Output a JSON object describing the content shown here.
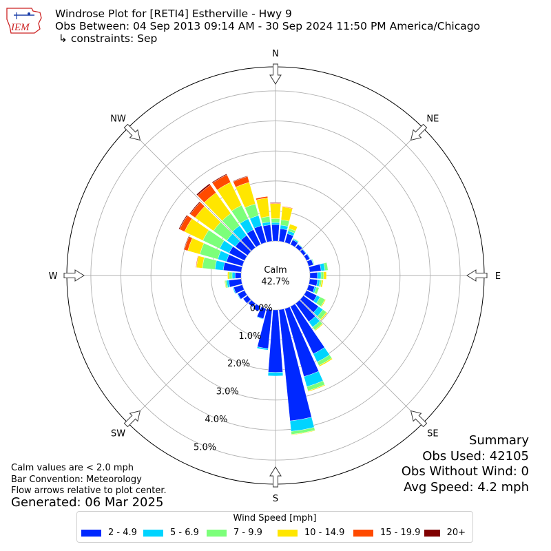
{
  "header": {
    "line1": "Windrose Plot for [RETI4] Estherville - Hwy 9",
    "line2": "Obs Between: 04 Sep 2013 09:14 AM - 30 Sep 2024 11:50 PM America/Chicago",
    "line3": " ↳ constraints: Sep"
  },
  "logo": {
    "text": "IEM",
    "color": "#cc2222"
  },
  "notes": {
    "calm": "Calm values are < 2.0 mph",
    "convention": "Bar Convention: Meteorology",
    "flow": "Flow arrows relative to plot center.",
    "generated": "Generated: 06 Mar 2025"
  },
  "summary": {
    "title": "Summary",
    "obs_used": "Obs Used: 42105",
    "obs_without_wind": "Obs Without Wind: 0",
    "avg_speed": "Avg Speed: 4.2 mph"
  },
  "center": {
    "label": "Calm",
    "value": "42.7%"
  },
  "legend": {
    "title": "Wind Speed [mph]",
    "items": [
      {
        "label": "2 - 4.9",
        "color": "#0028ff"
      },
      {
        "label": "5 - 6.9",
        "color": "#00d4ff"
      },
      {
        "label": "7 - 9.9",
        "color": "#7cff7a"
      },
      {
        "label": "10 - 14.9",
        "color": "#ffe600"
      },
      {
        "label": "15 - 19.9",
        "color": "#ff4a00"
      },
      {
        "label": "20+",
        "color": "#800000"
      }
    ]
  },
  "chart_data": {
    "type": "windrose",
    "direction_labels": [
      "N",
      "NE",
      "E",
      "SE",
      "S",
      "SW",
      "W",
      "NW"
    ],
    "rings": [
      "0.0%",
      "1.0%",
      "2.0%",
      "3.0%",
      "4.0%",
      "5.0%"
    ],
    "rmax": 5.8,
    "speed_bins": [
      "2 - 4.9",
      "5 - 6.9",
      "7 - 9.9",
      "10 - 14.9",
      "15 - 19.9",
      "20+"
    ],
    "grid": true,
    "bars": [
      {
        "dir": 0,
        "v": [
          0.55,
          0.07,
          0.13,
          0.5,
          0.02,
          0.02
        ]
      },
      {
        "dir": 10,
        "v": [
          0.42,
          0.12,
          0.18,
          0.43,
          0.02,
          0.0
        ]
      },
      {
        "dir": 20,
        "v": [
          0.3,
          0.1,
          0.08,
          0.15,
          0.0,
          0.0
        ]
      },
      {
        "dir": 30,
        "v": [
          0.17,
          0.04,
          0.02,
          0.01,
          0.0,
          0.0
        ]
      },
      {
        "dir": 40,
        "v": [
          0.13,
          0.02,
          0.01,
          0.0,
          0.0,
          0.0
        ]
      },
      {
        "dir": 50,
        "v": [
          0.1,
          0.02,
          0.0,
          0.0,
          0.0,
          0.0
        ]
      },
      {
        "dir": 60,
        "v": [
          0.12,
          0.02,
          0.0,
          0.0,
          0.0,
          0.0
        ]
      },
      {
        "dir": 70,
        "v": [
          0.16,
          0.02,
          0.02,
          0.0,
          0.0,
          0.0
        ]
      },
      {
        "dir": 80,
        "v": [
          0.38,
          0.13,
          0.1,
          0.0,
          0.0,
          0.0
        ]
      },
      {
        "dir": 90,
        "v": [
          0.25,
          0.12,
          0.09,
          0.09,
          0.0,
          0.0
        ]
      },
      {
        "dir": 100,
        "v": [
          0.26,
          0.08,
          0.06,
          0.05,
          0.0,
          0.0
        ]
      },
      {
        "dir": 110,
        "v": [
          0.21,
          0.06,
          0.09,
          0.0,
          0.0,
          0.0
        ]
      },
      {
        "dir": 120,
        "v": [
          0.38,
          0.12,
          0.18,
          0.03,
          0.0,
          0.0
        ]
      },
      {
        "dir": 130,
        "v": [
          0.62,
          0.18,
          0.14,
          0.04,
          0.0,
          0.0
        ]
      },
      {
        "dir": 140,
        "v": [
          0.75,
          0.22,
          0.12,
          0.03,
          0.0,
          0.0
        ]
      },
      {
        "dir": 150,
        "v": [
          1.75,
          0.3,
          0.13,
          0.04,
          0.0,
          0.0
        ]
      },
      {
        "dir": 160,
        "v": [
          2.35,
          0.35,
          0.14,
          0.03,
          0.0,
          0.0
        ]
      },
      {
        "dir": 170,
        "v": [
          3.72,
          0.35,
          0.1,
          0.02,
          0.0,
          0.0
        ]
      },
      {
        "dir": 180,
        "v": [
          2.08,
          0.12,
          0.0,
          0.0,
          0.0,
          0.0
        ]
      },
      {
        "dir": 190,
        "v": [
          1.3,
          0.05,
          0.0,
          0.0,
          0.0,
          0.0
        ]
      },
      {
        "dir": 200,
        "v": [
          0.35,
          0.02,
          0.0,
          0.0,
          0.0,
          0.0
        ]
      },
      {
        "dir": 210,
        "v": [
          0.18,
          0.0,
          0.0,
          0.0,
          0.0,
          0.0
        ]
      },
      {
        "dir": 220,
        "v": [
          0.15,
          0.0,
          0.0,
          0.0,
          0.0,
          0.0
        ]
      },
      {
        "dir": 230,
        "v": [
          0.18,
          0.0,
          0.0,
          0.0,
          0.0,
          0.0
        ]
      },
      {
        "dir": 240,
        "v": [
          0.25,
          0.02,
          0.0,
          0.0,
          0.0,
          0.0
        ]
      },
      {
        "dir": 250,
        "v": [
          0.3,
          0.03,
          0.0,
          0.0,
          0.0,
          0.0
        ]
      },
      {
        "dir": 260,
        "v": [
          0.42,
          0.07,
          0.05,
          0.02,
          0.0,
          0.0
        ]
      },
      {
        "dir": 270,
        "v": [
          0.2,
          0.1,
          0.1,
          0.05,
          0.0,
          0.0
        ]
      },
      {
        "dir": 280,
        "v": [
          0.6,
          0.28,
          0.42,
          0.2,
          0.02,
          0.0
        ]
      },
      {
        "dir": 290,
        "v": [
          0.55,
          0.3,
          0.62,
          0.42,
          0.12,
          0.02
        ]
      },
      {
        "dir": 300,
        "v": [
          0.57,
          0.35,
          0.62,
          0.68,
          0.18,
          0.03
        ]
      },
      {
        "dir": 310,
        "v": [
          0.5,
          0.35,
          0.55,
          0.75,
          0.2,
          0.03
        ]
      },
      {
        "dir": 320,
        "v": [
          0.5,
          0.4,
          0.5,
          0.85,
          0.32,
          0.05
        ]
      },
      {
        "dir": 330,
        "v": [
          0.55,
          0.4,
          0.5,
          0.85,
          0.28,
          0.03
        ]
      },
      {
        "dir": 340,
        "v": [
          0.58,
          0.35,
          0.4,
          0.75,
          0.2,
          0.02
        ]
      },
      {
        "dir": 350,
        "v": [
          0.55,
          0.1,
          0.18,
          0.62,
          0.05,
          0.0
        ]
      }
    ]
  }
}
